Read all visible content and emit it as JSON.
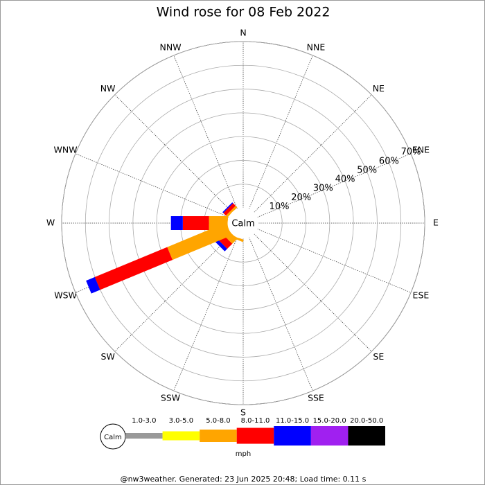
{
  "chart_data": {
    "type": "windrose",
    "title": "Wind rose for 08 Feb 2022",
    "directions": [
      "N",
      "NNE",
      "NE",
      "ENE",
      "E",
      "ESE",
      "SE",
      "SSE",
      "S",
      "SSW",
      "SW",
      "WSW",
      "W",
      "WNW",
      "NW",
      "NNW"
    ],
    "calm_label": "Calm",
    "rlim": [
      0,
      70
    ],
    "rticks": [
      {
        "value": 10,
        "label": "10%"
      },
      {
        "value": 20,
        "label": "20%"
      },
      {
        "value": 30,
        "label": "30%"
      },
      {
        "value": 40,
        "label": "40%"
      },
      {
        "value": 50,
        "label": "50%"
      },
      {
        "value": 60,
        "label": "60%"
      },
      {
        "value": 70,
        "label": "70%"
      }
    ],
    "series": [
      {
        "name": "1.0-3.0",
        "color": "#999999",
        "values": [
          0,
          0,
          0,
          0,
          0,
          0,
          0,
          0,
          0,
          0,
          0,
          0,
          0,
          0,
          0,
          0
        ]
      },
      {
        "name": "3.0-5.0",
        "color": "#ffff00",
        "values": [
          0,
          0,
          0,
          0,
          0,
          0,
          0,
          0,
          0,
          0,
          0,
          0,
          0,
          0,
          0,
          0
        ]
      },
      {
        "name": "5.0-8.0",
        "color": "#ffa500",
        "values": [
          0,
          0,
          0,
          0,
          0,
          0,
          0,
          0,
          0,
          1,
          3,
          27,
          8,
          0,
          1,
          0
        ]
      },
      {
        "name": "8.0-11.0",
        "color": "#ff0000",
        "values": [
          0,
          0,
          0,
          0,
          0,
          0,
          0,
          0,
          0,
          0,
          3,
          33,
          11,
          0,
          1.5,
          0
        ]
      },
      {
        "name": "11.0-15.0",
        "color": "#0000ff",
        "values": [
          0,
          0,
          0,
          0,
          0,
          0,
          0,
          0,
          0,
          0,
          1.5,
          4,
          5,
          0,
          0.5,
          0
        ]
      },
      {
        "name": "15.0-20.0",
        "color": "#a020f0",
        "values": [
          0,
          0,
          0,
          0,
          0,
          0,
          0,
          0,
          0,
          0,
          0,
          0,
          0,
          0,
          0,
          0
        ]
      },
      {
        "name": "20.0-50.0",
        "color": "#000000",
        "values": [
          0,
          0,
          0,
          0,
          0,
          0,
          0,
          0,
          0,
          0,
          0,
          0,
          0,
          0,
          0,
          0
        ]
      }
    ],
    "unit": "mph",
    "footer": "@nw3weather. Generated: 23 Jun 2025 20:48; Load time: 0.11 s"
  }
}
